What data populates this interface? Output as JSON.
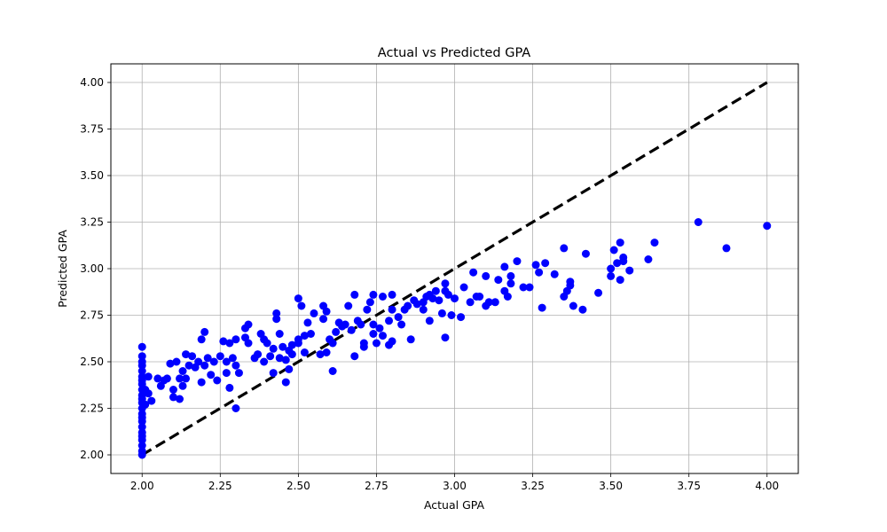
{
  "chart_data": {
    "type": "scatter",
    "title": "Actual vs Predicted GPA",
    "xlabel": "Actual GPA",
    "ylabel": "Predicted GPA",
    "xlim": [
      1.9,
      4.1
    ],
    "ylim": [
      1.9,
      4.1
    ],
    "x_ticks": [
      "2.00",
      "2.25",
      "2.50",
      "2.75",
      "3.00",
      "3.25",
      "3.50",
      "3.75",
      "4.00"
    ],
    "y_ticks": [
      "2.00",
      "2.25",
      "2.50",
      "2.75",
      "3.00",
      "3.25",
      "3.50",
      "3.75",
      "4.00"
    ],
    "grid": true,
    "colors": {
      "points": "#0000ff",
      "reference_line": "#000000",
      "grid": "#b0b0b0"
    },
    "reference_line": {
      "style": "dashed",
      "points": [
        [
          2.0,
          2.0
        ],
        [
          4.0,
          4.0
        ]
      ]
    },
    "series": [
      {
        "points": [
          [
            2.0,
            2.0
          ],
          [
            2.0,
            2.02
          ],
          [
            2.0,
            2.05
          ],
          [
            2.0,
            2.08
          ],
          [
            2.0,
            2.1
          ],
          [
            2.0,
            2.12
          ],
          [
            2.0,
            2.15
          ],
          [
            2.0,
            2.18
          ],
          [
            2.0,
            2.2
          ],
          [
            2.0,
            2.22
          ],
          [
            2.0,
            2.25
          ],
          [
            2.0,
            2.28
          ],
          [
            2.0,
            2.3
          ],
          [
            2.0,
            2.32
          ],
          [
            2.0,
            2.35
          ],
          [
            2.0,
            2.38
          ],
          [
            2.0,
            2.4
          ],
          [
            2.0,
            2.42
          ],
          [
            2.0,
            2.45
          ],
          [
            2.0,
            2.48
          ],
          [
            2.0,
            2.5
          ],
          [
            2.0,
            2.53
          ],
          [
            2.0,
            2.58
          ],
          [
            2.01,
            2.27
          ],
          [
            2.01,
            2.35
          ],
          [
            2.02,
            2.33
          ],
          [
            2.02,
            2.42
          ],
          [
            2.03,
            2.29
          ],
          [
            2.05,
            2.41
          ],
          [
            2.06,
            2.37
          ],
          [
            2.07,
            2.4
          ],
          [
            2.08,
            2.41
          ],
          [
            2.09,
            2.49
          ],
          [
            2.1,
            2.35
          ],
          [
            2.1,
            2.31
          ],
          [
            2.11,
            2.5
          ],
          [
            2.12,
            2.41
          ],
          [
            2.12,
            2.3
          ],
          [
            2.13,
            2.37
          ],
          [
            2.13,
            2.45
          ],
          [
            2.14,
            2.54
          ],
          [
            2.14,
            2.41
          ],
          [
            2.15,
            2.48
          ],
          [
            2.16,
            2.53
          ],
          [
            2.17,
            2.47
          ],
          [
            2.18,
            2.5
          ],
          [
            2.19,
            2.39
          ],
          [
            2.19,
            2.62
          ],
          [
            2.2,
            2.66
          ],
          [
            2.2,
            2.48
          ],
          [
            2.21,
            2.52
          ],
          [
            2.22,
            2.43
          ],
          [
            2.23,
            2.5
          ],
          [
            2.24,
            2.4
          ],
          [
            2.25,
            2.53
          ],
          [
            2.26,
            2.61
          ],
          [
            2.27,
            2.44
          ],
          [
            2.27,
            2.5
          ],
          [
            2.28,
            2.36
          ],
          [
            2.28,
            2.6
          ],
          [
            2.29,
            2.52
          ],
          [
            2.3,
            2.62
          ],
          [
            2.3,
            2.48
          ],
          [
            2.3,
            2.25
          ],
          [
            2.31,
            2.44
          ],
          [
            2.33,
            2.63
          ],
          [
            2.33,
            2.68
          ],
          [
            2.34,
            2.6
          ],
          [
            2.34,
            2.7
          ],
          [
            2.36,
            2.52
          ],
          [
            2.37,
            2.54
          ],
          [
            2.38,
            2.65
          ],
          [
            2.39,
            2.62
          ],
          [
            2.39,
            2.5
          ],
          [
            2.4,
            2.6
          ],
          [
            2.41,
            2.53
          ],
          [
            2.42,
            2.44
          ],
          [
            2.42,
            2.57
          ],
          [
            2.43,
            2.73
          ],
          [
            2.43,
            2.76
          ],
          [
            2.44,
            2.65
          ],
          [
            2.44,
            2.52
          ],
          [
            2.45,
            2.58
          ],
          [
            2.46,
            2.39
          ],
          [
            2.46,
            2.51
          ],
          [
            2.47,
            2.56
          ],
          [
            2.47,
            2.46
          ],
          [
            2.48,
            2.54
          ],
          [
            2.48,
            2.59
          ],
          [
            2.5,
            2.84
          ],
          [
            2.5,
            2.6
          ],
          [
            2.5,
            2.62
          ],
          [
            2.51,
            2.8
          ],
          [
            2.52,
            2.55
          ],
          [
            2.52,
            2.64
          ],
          [
            2.53,
            2.71
          ],
          [
            2.54,
            2.65
          ],
          [
            2.55,
            2.76
          ],
          [
            2.57,
            2.54
          ],
          [
            2.58,
            2.73
          ],
          [
            2.58,
            2.8
          ],
          [
            2.59,
            2.77
          ],
          [
            2.59,
            2.55
          ],
          [
            2.6,
            2.62
          ],
          [
            2.61,
            2.6
          ],
          [
            2.61,
            2.45
          ],
          [
            2.62,
            2.66
          ],
          [
            2.63,
            2.71
          ],
          [
            2.64,
            2.69
          ],
          [
            2.65,
            2.7
          ],
          [
            2.66,
            2.8
          ],
          [
            2.67,
            2.67
          ],
          [
            2.68,
            2.86
          ],
          [
            2.68,
            2.53
          ],
          [
            2.69,
            2.72
          ],
          [
            2.7,
            2.7
          ],
          [
            2.71,
            2.6
          ],
          [
            2.71,
            2.58
          ],
          [
            2.72,
            2.78
          ],
          [
            2.73,
            2.82
          ],
          [
            2.74,
            2.86
          ],
          [
            2.74,
            2.7
          ],
          [
            2.74,
            2.65
          ],
          [
            2.75,
            2.6
          ],
          [
            2.76,
            2.68
          ],
          [
            2.77,
            2.64
          ],
          [
            2.77,
            2.85
          ],
          [
            2.79,
            2.72
          ],
          [
            2.79,
            2.59
          ],
          [
            2.8,
            2.86
          ],
          [
            2.8,
            2.61
          ],
          [
            2.8,
            2.78
          ],
          [
            2.82,
            2.74
          ],
          [
            2.83,
            2.7
          ],
          [
            2.84,
            2.78
          ],
          [
            2.85,
            2.8
          ],
          [
            2.86,
            2.62
          ],
          [
            2.87,
            2.83
          ],
          [
            2.88,
            2.81
          ],
          [
            2.9,
            2.78
          ],
          [
            2.9,
            2.82
          ],
          [
            2.91,
            2.85
          ],
          [
            2.92,
            2.86
          ],
          [
            2.92,
            2.72
          ],
          [
            2.93,
            2.84
          ],
          [
            2.94,
            2.88
          ],
          [
            2.95,
            2.83
          ],
          [
            2.96,
            2.76
          ],
          [
            2.97,
            2.63
          ],
          [
            2.97,
            2.92
          ],
          [
            2.97,
            2.88
          ],
          [
            2.98,
            2.86
          ],
          [
            2.99,
            2.75
          ],
          [
            3.0,
            2.84
          ],
          [
            3.02,
            2.74
          ],
          [
            3.03,
            2.9
          ],
          [
            3.05,
            2.82
          ],
          [
            3.06,
            2.98
          ],
          [
            3.07,
            2.85
          ],
          [
            3.08,
            2.85
          ],
          [
            3.1,
            2.8
          ],
          [
            3.1,
            2.96
          ],
          [
            3.11,
            2.82
          ],
          [
            3.13,
            2.82
          ],
          [
            3.14,
            2.94
          ],
          [
            3.16,
            2.88
          ],
          [
            3.16,
            3.01
          ],
          [
            3.17,
            2.85
          ],
          [
            3.18,
            2.92
          ],
          [
            3.18,
            2.96
          ],
          [
            3.2,
            3.04
          ],
          [
            3.22,
            2.9
          ],
          [
            3.24,
            2.9
          ],
          [
            3.26,
            3.02
          ],
          [
            3.27,
            2.98
          ],
          [
            3.28,
            2.79
          ],
          [
            3.29,
            3.03
          ],
          [
            3.32,
            2.97
          ],
          [
            3.35,
            2.85
          ],
          [
            3.35,
            3.11
          ],
          [
            3.36,
            2.88
          ],
          [
            3.37,
            2.91
          ],
          [
            3.37,
            2.93
          ],
          [
            3.38,
            2.8
          ],
          [
            3.41,
            2.78
          ],
          [
            3.42,
            3.08
          ],
          [
            3.46,
            2.87
          ],
          [
            3.5,
            3.0
          ],
          [
            3.5,
            2.96
          ],
          [
            3.51,
            3.1
          ],
          [
            3.52,
            3.03
          ],
          [
            3.53,
            3.14
          ],
          [
            3.53,
            2.94
          ],
          [
            3.54,
            3.06
          ],
          [
            3.54,
            3.04
          ],
          [
            3.56,
            2.99
          ],
          [
            3.62,
            3.05
          ],
          [
            3.64,
            3.14
          ],
          [
            3.78,
            3.25
          ],
          [
            3.87,
            3.11
          ],
          [
            4.0,
            3.23
          ]
        ]
      }
    ]
  }
}
